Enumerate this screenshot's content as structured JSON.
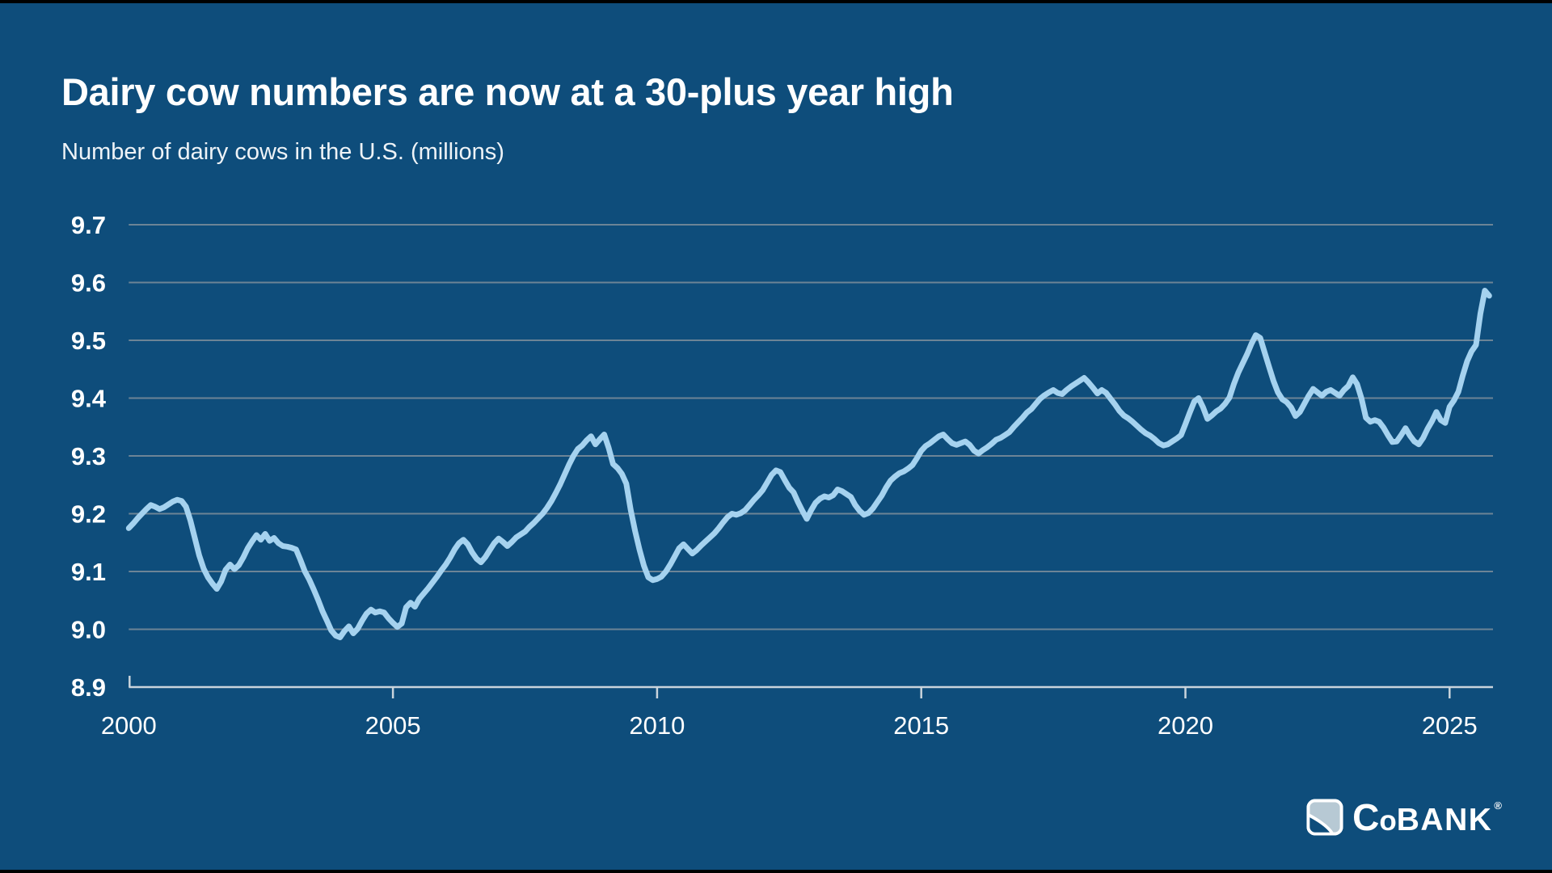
{
  "page": {
    "bg_color": "#0E4D7B"
  },
  "header": {
    "title": "Dairy cow numbers are now at a 30-plus year high",
    "subtitle": "Number of dairy cows in the U.S. (millions)"
  },
  "chart_data": {
    "type": "line",
    "title": "Dairy cow numbers are now at a 30-plus year high",
    "subtitle": "Number of dairy cows in the U.S. (millions)",
    "xlabel": "",
    "ylabel": "Number of dairy cows in the U.S. (millions)",
    "x_unit": "year",
    "frequency": "monthly",
    "start": "2000-01",
    "end": "2025-10",
    "xlim": [
      2000,
      2025.85
    ],
    "ylim": [
      8.9,
      9.7
    ],
    "grid": true,
    "legend_position": "none",
    "x_ticks": [
      2000,
      2005,
      2010,
      2015,
      2020,
      2025
    ],
    "y_ticks": [
      "8.9",
      "9.0",
      "9.1",
      "9.2",
      "9.3",
      "9.4",
      "9.5",
      "9.6",
      "9.7"
    ],
    "colors": {
      "line": "#A5D2EF",
      "grid": "#6C8496",
      "axis": "#C9D4DC",
      "labels": "#FFFFFF",
      "background": "#0E4D7B"
    },
    "series": [
      {
        "name": "Number of dairy cows in the U.S. (millions)",
        "values": [
          9.175,
          9.183,
          9.192,
          9.2,
          9.208,
          9.215,
          9.212,
          9.208,
          9.211,
          9.216,
          9.221,
          9.224,
          9.222,
          9.212,
          9.188,
          9.158,
          9.128,
          9.105,
          9.09,
          9.079,
          9.07,
          9.083,
          9.103,
          9.112,
          9.104,
          9.111,
          9.124,
          9.14,
          9.152,
          9.163,
          9.155,
          9.165,
          9.153,
          9.158,
          9.149,
          9.144,
          9.143,
          9.141,
          9.138,
          9.12,
          9.1,
          9.086,
          9.069,
          9.051,
          9.031,
          9.015,
          8.998,
          8.989,
          8.986,
          8.997,
          9.005,
          8.993,
          9.001,
          9.015,
          9.027,
          9.034,
          9.029,
          9.031,
          9.029,
          9.019,
          9.011,
          9.004,
          9.01,
          9.038,
          9.046,
          9.039,
          9.053,
          9.062,
          9.071,
          9.081,
          9.091,
          9.102,
          9.112,
          9.124,
          9.138,
          9.149,
          9.155,
          9.147,
          9.133,
          9.122,
          9.116,
          9.125,
          9.137,
          9.149,
          9.157,
          9.151,
          9.144,
          9.151,
          9.159,
          9.164,
          9.169,
          9.177,
          9.184,
          9.192,
          9.2,
          9.21,
          9.222,
          9.236,
          9.251,
          9.268,
          9.285,
          9.3,
          9.312,
          9.318,
          9.327,
          9.334,
          9.32,
          9.329,
          9.337,
          9.314,
          9.286,
          9.279,
          9.269,
          9.252,
          9.207,
          9.17,
          9.138,
          9.11,
          9.09,
          9.085,
          9.087,
          9.091,
          9.1,
          9.112,
          9.126,
          9.14,
          9.147,
          9.139,
          9.131,
          9.137,
          9.145,
          9.152,
          9.159,
          9.166,
          9.175,
          9.185,
          9.194,
          9.2,
          9.198,
          9.201,
          9.206,
          9.215,
          9.224,
          9.232,
          9.241,
          9.254,
          9.267,
          9.275,
          9.272,
          9.258,
          9.245,
          9.237,
          9.22,
          9.205,
          9.191,
          9.206,
          9.219,
          9.226,
          9.23,
          9.228,
          9.232,
          9.242,
          9.239,
          9.234,
          9.229,
          9.215,
          9.205,
          9.198,
          9.201,
          9.209,
          9.22,
          9.231,
          9.245,
          9.257,
          9.264,
          9.27,
          9.273,
          9.278,
          9.284,
          9.296,
          9.309,
          9.317,
          9.322,
          9.328,
          9.334,
          9.337,
          9.329,
          9.322,
          9.319,
          9.322,
          9.325,
          9.319,
          9.309,
          9.304,
          9.31,
          9.315,
          9.321,
          9.328,
          9.331,
          9.336,
          9.341,
          9.35,
          9.358,
          9.366,
          9.375,
          9.381,
          9.39,
          9.399,
          9.405,
          9.41,
          9.414,
          9.409,
          9.407,
          9.414,
          9.42,
          9.425,
          9.43,
          9.435,
          9.427,
          9.418,
          9.408,
          9.414,
          9.409,
          9.399,
          9.389,
          9.378,
          9.37,
          9.365,
          9.359,
          9.352,
          9.345,
          9.339,
          9.335,
          9.329,
          9.322,
          9.318,
          9.32,
          9.325,
          9.33,
          9.336,
          9.355,
          9.375,
          9.394,
          9.4,
          9.384,
          9.364,
          9.37,
          9.377,
          9.382,
          9.39,
          9.401,
          9.424,
          9.444,
          9.46,
          9.476,
          9.494,
          9.509,
          9.504,
          9.479,
          9.454,
          9.43,
          9.41,
          9.398,
          9.393,
          9.384,
          9.369,
          9.376,
          9.39,
          9.404,
          9.416,
          9.41,
          9.404,
          9.411,
          9.414,
          9.409,
          9.404,
          9.414,
          9.421,
          9.436,
          9.424,
          9.399,
          9.366,
          9.359,
          9.362,
          9.359,
          9.349,
          9.336,
          9.324,
          9.325,
          9.336,
          9.348,
          9.335,
          9.325,
          9.32,
          9.331,
          9.347,
          9.36,
          9.376,
          9.362,
          9.357,
          9.385,
          9.396,
          9.411,
          9.439,
          9.464,
          9.481,
          9.492,
          9.546,
          9.586,
          9.577
        ]
      }
    ]
  },
  "logo": {
    "name": "CoBANK",
    "c": "C",
    "o": "o",
    "bank": "BANK",
    "reg": "®",
    "icon_fill": "#B7C9D4"
  }
}
